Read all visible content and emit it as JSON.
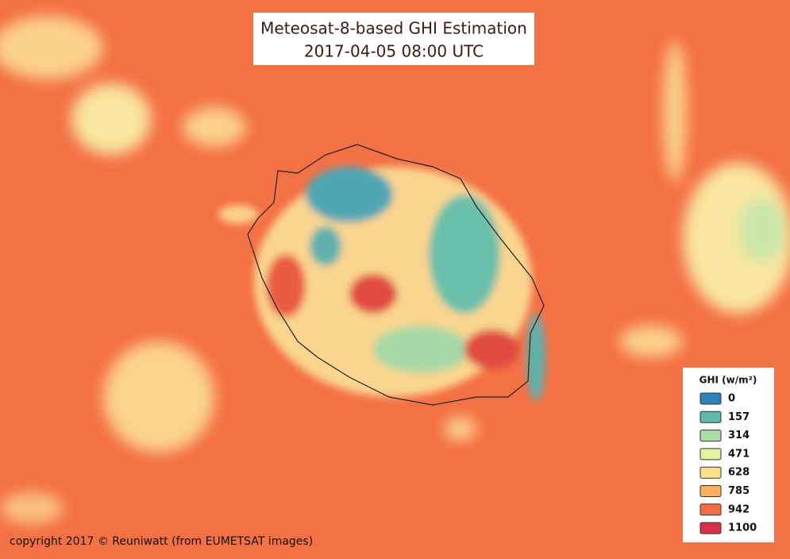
{
  "title": {
    "line1": "Meteosat-8-based GHI Estimation",
    "line2": "2017-04-05 08:00 UTC"
  },
  "legend": {
    "title": "GHI (w/m²)",
    "items": [
      {
        "value": 0,
        "color": "#2b83ba"
      },
      {
        "value": 157,
        "color": "#5fbaa8"
      },
      {
        "value": 314,
        "color": "#abdda4"
      },
      {
        "value": 471,
        "color": "#e2f3a2"
      },
      {
        "value": 628,
        "color": "#fddf8e"
      },
      {
        "value": 785,
        "color": "#fdae61"
      },
      {
        "value": 942,
        "color": "#f46d43"
      },
      {
        "value": 1100,
        "color": "#d7304b"
      }
    ]
  },
  "credit": "copyright 2017 © Reuniwatt (from EUMETSAT images)"
}
